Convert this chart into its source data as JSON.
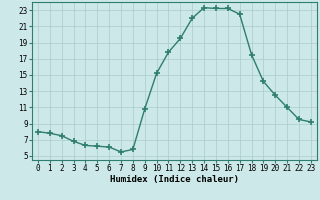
{
  "x": [
    0,
    1,
    2,
    3,
    4,
    5,
    6,
    7,
    8,
    9,
    10,
    11,
    12,
    13,
    14,
    15,
    16,
    17,
    18,
    19,
    20,
    21,
    22,
    23
  ],
  "y": [
    8.0,
    7.8,
    7.5,
    6.8,
    6.3,
    6.2,
    6.1,
    5.5,
    5.8,
    10.8,
    15.2,
    17.8,
    19.5,
    22.0,
    23.3,
    23.2,
    23.2,
    22.5,
    17.5,
    14.2,
    12.5,
    11.0,
    9.5,
    9.2
  ],
  "line_color": "#2e7d6e",
  "marker": "+",
  "markersize": 4,
  "markeredgewidth": 1.2,
  "bg_color": "#cce8e8",
  "grid_color": "#aacccc",
  "xlabel": "Humidex (Indice chaleur)",
  "ylabel_ticks": [
    5,
    7,
    9,
    11,
    13,
    15,
    17,
    19,
    21,
    23
  ],
  "xlim": [
    -0.5,
    23.5
  ],
  "ylim": [
    4.5,
    24.0
  ],
  "xticks": [
    0,
    1,
    2,
    3,
    4,
    5,
    6,
    7,
    8,
    9,
    10,
    11,
    12,
    13,
    14,
    15,
    16,
    17,
    18,
    19,
    20,
    21,
    22,
    23
  ],
  "axis_fontsize": 5.5,
  "tick_fontsize": 5.5,
  "xlabel_fontsize": 6.5,
  "linewidth": 1.0
}
